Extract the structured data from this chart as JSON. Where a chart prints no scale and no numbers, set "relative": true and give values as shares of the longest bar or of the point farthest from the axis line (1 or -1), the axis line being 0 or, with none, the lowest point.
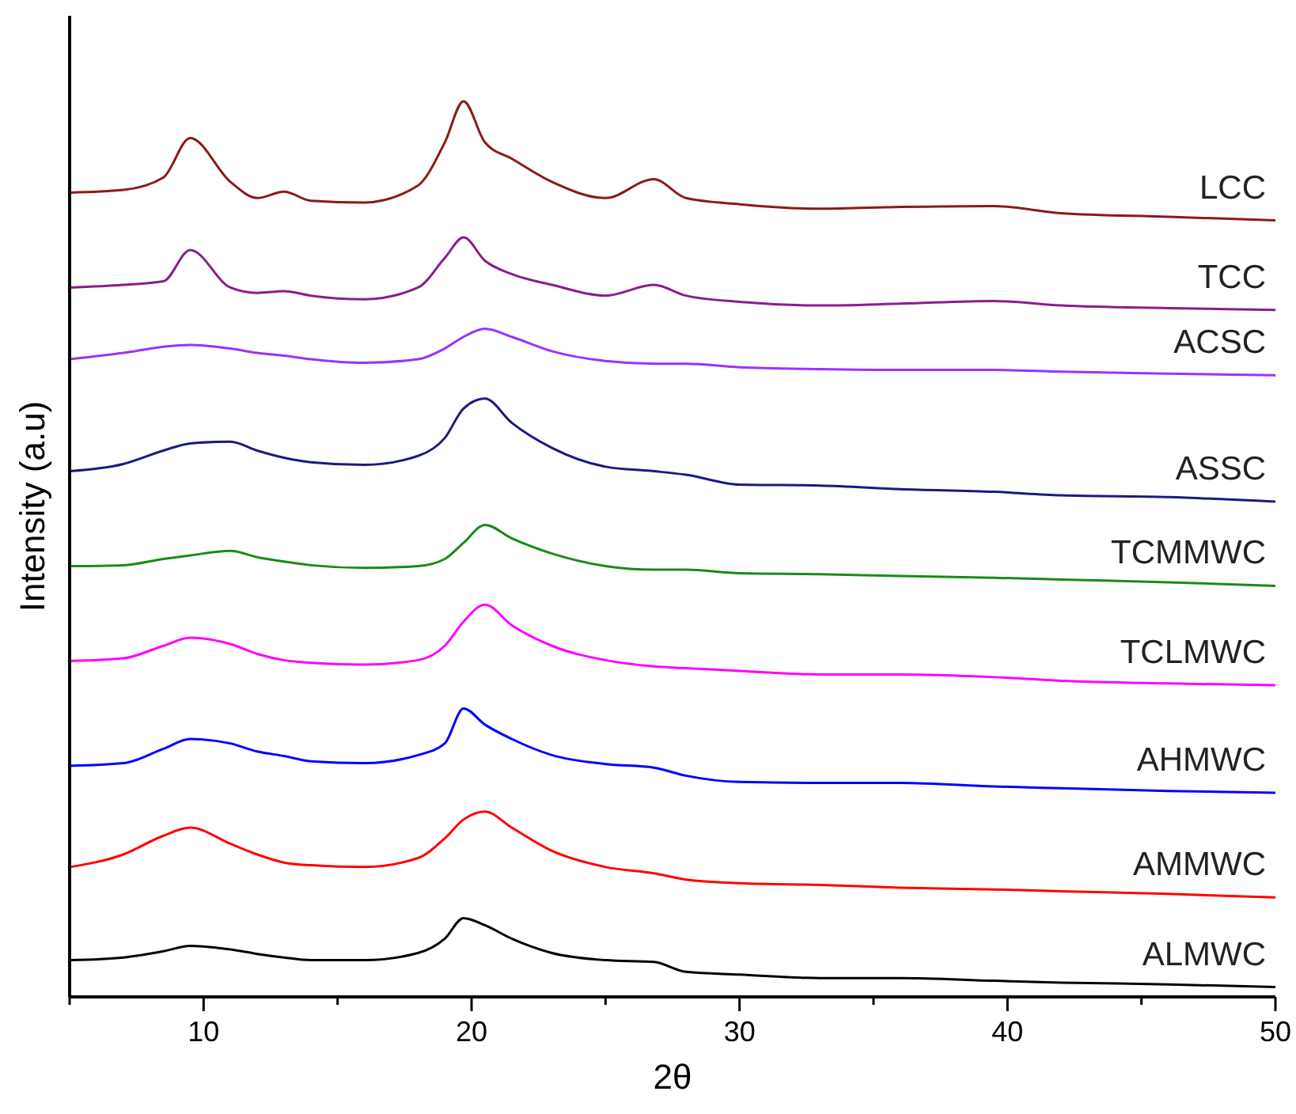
{
  "chart_data": {
    "type": "line",
    "relative": true,
    "xlabel": "2θ",
    "ylabel": "Intensity (a.u)",
    "xlim": [
      5,
      50
    ],
    "xticks": [
      {
        "value": 5,
        "label": null
      },
      10,
      {
        "value": 15,
        "label": null
      },
      20,
      {
        "value": 25,
        "label": null
      },
      30,
      {
        "value": 35,
        "label": null
      },
      40,
      {
        "value": 45,
        "label": null
      },
      50
    ],
    "x": [
      5,
      7,
      8.5,
      9.5,
      11,
      12,
      13,
      14,
      16,
      18,
      19,
      19.7,
      20.5,
      21.5,
      23,
      25,
      26.8,
      28,
      30,
      33,
      36,
      39.5,
      42,
      46,
      50
    ],
    "series": [
      {
        "name": "LCC",
        "color": "#8b1a1a",
        "values": [
          0.898,
          0.901,
          0.915,
          0.959,
          0.91,
          0.892,
          0.899,
          0.889,
          0.887,
          0.906,
          0.954,
          1,
          0.954,
          0.936,
          0.91,
          0.892,
          0.913,
          0.892,
          0.885,
          0.88,
          0.882,
          0.883,
          0.875,
          0.871,
          0.867
        ]
      },
      {
        "name": "TCC",
        "color": "#8b1c8b",
        "values": [
          0.792,
          0.795,
          0.799,
          0.834,
          0.792,
          0.786,
          0.788,
          0.783,
          0.779,
          0.792,
          0.825,
          0.848,
          0.822,
          0.807,
          0.795,
          0.783,
          0.795,
          0.783,
          0.776,
          0.772,
          0.774,
          0.777,
          0.772,
          0.769,
          0.767
        ]
      },
      {
        "name": "ACSC",
        "color": "#9933ff",
        "values": [
          0.712,
          0.719,
          0.726,
          0.728,
          0.724,
          0.719,
          0.716,
          0.712,
          0.708,
          0.712,
          0.724,
          0.737,
          0.746,
          0.737,
          0.721,
          0.71,
          0.707,
          0.707,
          0.703,
          0.701,
          0.7,
          0.7,
          0.698,
          0.696,
          0.694
        ]
      },
      {
        "name": "ASSC",
        "color": "#1a1a80",
        "values": [
          0.587,
          0.595,
          0.61,
          0.618,
          0.62,
          0.61,
          0.602,
          0.597,
          0.594,
          0.604,
          0.624,
          0.657,
          0.668,
          0.641,
          0.613,
          0.592,
          0.587,
          0.583,
          0.572,
          0.571,
          0.567,
          0.564,
          0.56,
          0.558,
          0.553
        ]
      },
      {
        "name": "TCMMWC",
        "color": "#1a8a1a",
        "values": [
          0.481,
          0.482,
          0.489,
          0.493,
          0.498,
          0.491,
          0.486,
          0.482,
          0.479,
          0.481,
          0.489,
          0.507,
          0.527,
          0.512,
          0.495,
          0.481,
          0.477,
          0.477,
          0.473,
          0.472,
          0.47,
          0.468,
          0.466,
          0.463,
          0.459
        ]
      },
      {
        "name": "TCLMWC",
        "color": "#ff00ff",
        "values": [
          0.375,
          0.378,
          0.392,
          0.401,
          0.394,
          0.383,
          0.376,
          0.373,
          0.371,
          0.376,
          0.392,
          0.419,
          0.438,
          0.415,
          0.392,
          0.376,
          0.369,
          0.367,
          0.364,
          0.36,
          0.36,
          0.357,
          0.353,
          0.35,
          0.348
        ]
      },
      {
        "name": "AHMWC",
        "color": "#0000ff",
        "values": [
          0.258,
          0.261,
          0.277,
          0.288,
          0.283,
          0.274,
          0.269,
          0.263,
          0.261,
          0.27,
          0.283,
          0.322,
          0.304,
          0.288,
          0.27,
          0.26,
          0.256,
          0.247,
          0.24,
          0.239,
          0.239,
          0.235,
          0.233,
          0.23,
          0.228
        ]
      },
      {
        "name": "AMMWC",
        "color": "#ff0000",
        "values": [
          0.145,
          0.159,
          0.18,
          0.189,
          0.171,
          0.159,
          0.15,
          0.147,
          0.145,
          0.155,
          0.177,
          0.198,
          0.207,
          0.189,
          0.163,
          0.145,
          0.138,
          0.131,
          0.127,
          0.125,
          0.122,
          0.12,
          0.118,
          0.115,
          0.111
        ]
      },
      {
        "name": "ALMWC",
        "color": "#000000",
        "values": [
          0.041,
          0.044,
          0.051,
          0.057,
          0.053,
          0.048,
          0.044,
          0.041,
          0.041,
          0.049,
          0.065,
          0.088,
          0.08,
          0.065,
          0.049,
          0.041,
          0.039,
          0.028,
          0.025,
          0.021,
          0.021,
          0.018,
          0.016,
          0.014,
          0.011
        ]
      }
    ]
  }
}
